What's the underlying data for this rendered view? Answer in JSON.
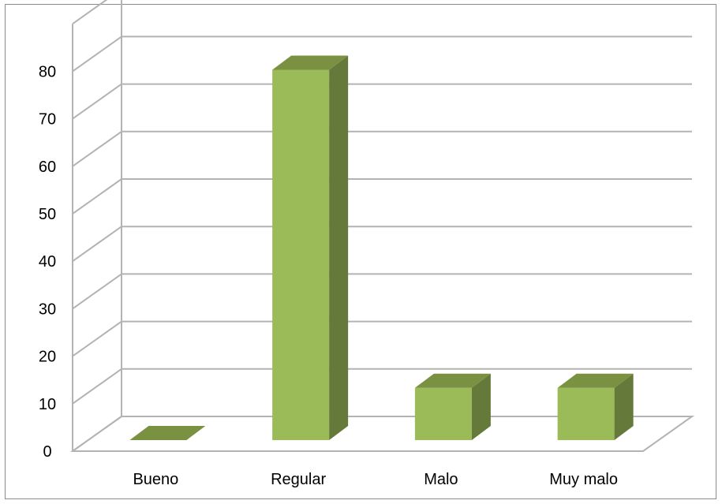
{
  "chart_data": {
    "type": "bar",
    "style": "3d-column",
    "categories": [
      "Bueno",
      "Regular",
      "Malo",
      "Muy malo"
    ],
    "values": [
      0,
      78,
      11,
      11
    ],
    "title": "",
    "xlabel": "",
    "ylabel": "",
    "ylim": [
      0,
      90
    ],
    "yticks": [
      0,
      10,
      20,
      30,
      40,
      50,
      60,
      70,
      80
    ],
    "grid": true,
    "legend": "none",
    "colors": {
      "bar_front": "#9bbb59",
      "bar_side": "#657a3a",
      "bar_top": "#7a9142",
      "grid": "#b3b3b3"
    }
  }
}
